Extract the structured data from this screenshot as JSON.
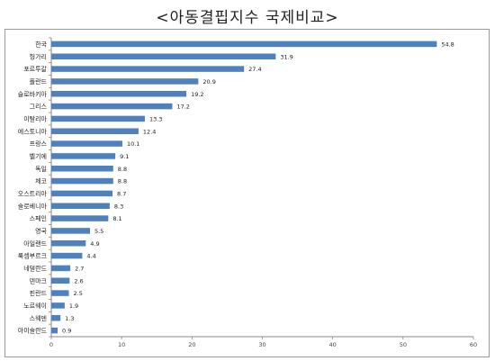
{
  "chart_data": {
    "type": "bar",
    "orientation": "horizontal",
    "title": "<아동결핍지수 국제비교>",
    "categories": [
      "한국",
      "헝가리",
      "포르투갈",
      "폴란드",
      "슬로바키아",
      "그리스",
      "이탈리아",
      "에스토니아",
      "프랑스",
      "벨기에",
      "독일",
      "체코",
      "오스트리아",
      "슬로베니아",
      "스페인",
      "영국",
      "아일랜드",
      "룩셈부르크",
      "네덜란드",
      "덴마크",
      "핀란드",
      "노르웨이",
      "스웨덴",
      "아이슬란드"
    ],
    "values": [
      54.8,
      31.9,
      27.4,
      20.9,
      19.2,
      17.2,
      13.3,
      12.4,
      10.1,
      9.1,
      8.8,
      8.8,
      8.7,
      8.3,
      8.1,
      5.5,
      4.9,
      4.4,
      2.7,
      2.6,
      2.5,
      1.9,
      1.3,
      0.9
    ],
    "value_labels": [
      "54.8",
      "31.9",
      "27.4",
      "20.9",
      "19.2",
      "17.2",
      "13.3",
      "12.4",
      "10.1",
      "9.1",
      "8.8",
      "8.8",
      "8.7",
      "8.3",
      "8.1",
      "5.5",
      "4.9",
      "4.4",
      "2.7",
      "2.6",
      "2.5",
      "1.9",
      "1.3",
      "0.9"
    ],
    "xlim": [
      0,
      60
    ],
    "xticks": [
      "0",
      "10",
      "20",
      "30",
      "40",
      "50",
      "60"
    ],
    "grid": false,
    "legend": "none",
    "bar_color": "#4f81bd"
  }
}
